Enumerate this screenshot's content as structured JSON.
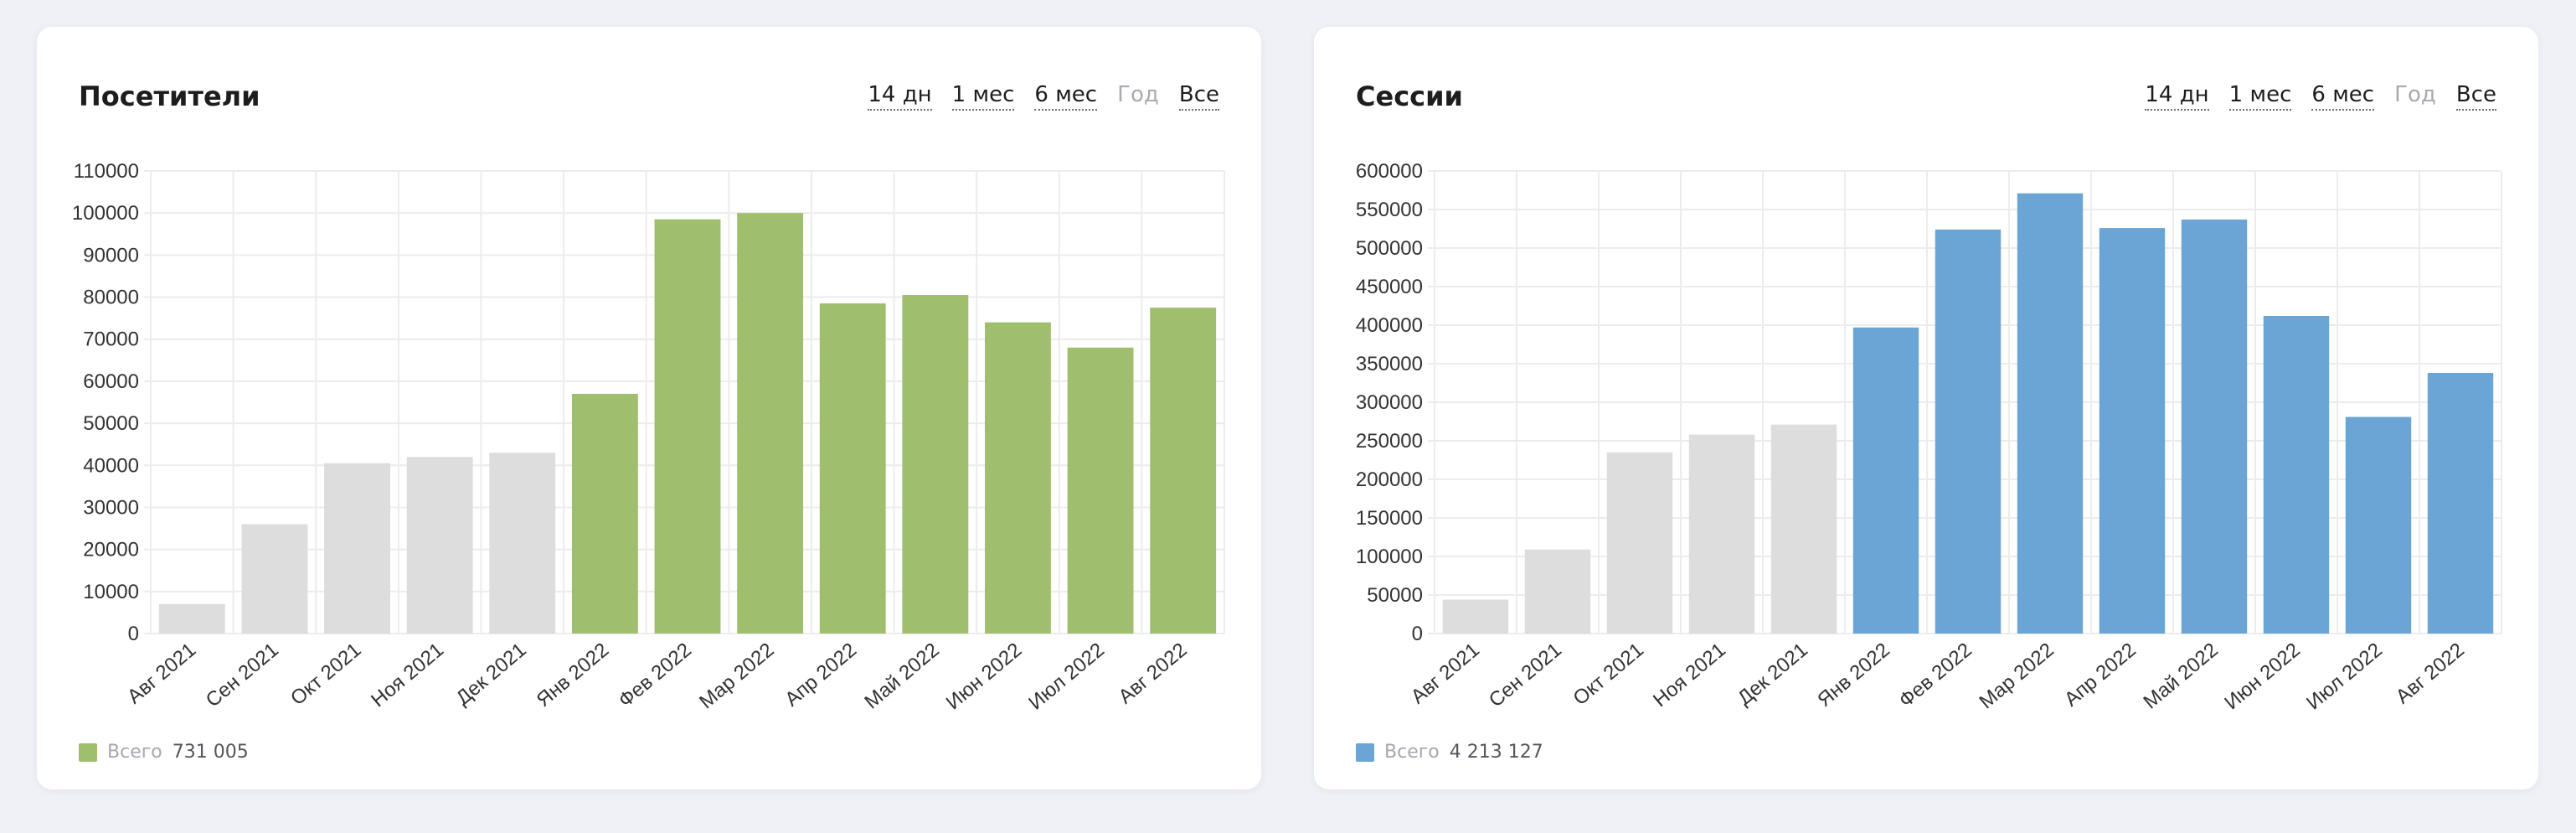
{
  "period_tabs": [
    {
      "label": "14 дн",
      "enabled": true
    },
    {
      "label": "1 мес",
      "enabled": true
    },
    {
      "label": "6 мес",
      "enabled": true
    },
    {
      "label": "Год",
      "enabled": false
    },
    {
      "label": "Все",
      "enabled": true
    }
  ],
  "visitors": {
    "title": "Посетители",
    "legend_label": "Всего",
    "legend_total": "731 005",
    "accent": "#a0bf6e"
  },
  "sessions": {
    "title": "Сессии",
    "legend_label": "Всего",
    "legend_total": "4 213 127",
    "accent": "#6aa5d6"
  },
  "colors": {
    "inactive_bar": "#dddddd",
    "grid": "#ececec",
    "tick_text": "#333333"
  },
  "chart_data": [
    {
      "type": "bar",
      "title": "Посетители",
      "categories": [
        "Авг 2021",
        "Сен 2021",
        "Окт 2021",
        "Ноя 2021",
        "Дек 2021",
        "Янв 2022",
        "Фев 2022",
        "Мар 2022",
        "Апр 2022",
        "Май 2022",
        "Июн 2022",
        "Июл 2022",
        "Авг 2022"
      ],
      "values": [
        7000,
        26000,
        40500,
        42000,
        43000,
        57000,
        98500,
        100000,
        78500,
        80500,
        74000,
        68000,
        77500
      ],
      "highlighted_from_index": 5,
      "yticks": [
        0,
        10000,
        20000,
        30000,
        40000,
        50000,
        60000,
        70000,
        80000,
        90000,
        100000,
        110000
      ],
      "ylim": [
        0,
        110000
      ],
      "xlabel": "",
      "ylabel": "",
      "grid": true
    },
    {
      "type": "bar",
      "title": "Сессии",
      "categories": [
        "Авг 2021",
        "Сен 2021",
        "Окт 2021",
        "Ноя 2021",
        "Дек 2021",
        "Янв 2022",
        "Фев 2022",
        "Мар 2022",
        "Апр 2022",
        "Май 2022",
        "Июн 2022",
        "Июл 2022",
        "Авг 2022"
      ],
      "values": [
        44000,
        109000,
        235000,
        258000,
        271000,
        397000,
        524000,
        571000,
        526000,
        537000,
        412000,
        281000,
        338000
      ],
      "highlighted_from_index": 5,
      "yticks": [
        0,
        50000,
        100000,
        150000,
        200000,
        250000,
        300000,
        350000,
        400000,
        450000,
        500000,
        550000,
        600000
      ],
      "ytick_labels": [
        "0",
        "50000",
        "100000",
        "150000",
        "200000",
        "250000",
        "300000",
        "350000",
        "400000",
        "450000",
        "500000",
        "550000",
        "600000"
      ],
      "ylim": [
        0,
        600000
      ],
      "xlabel": "",
      "ylabel": "",
      "grid": true
    }
  ]
}
